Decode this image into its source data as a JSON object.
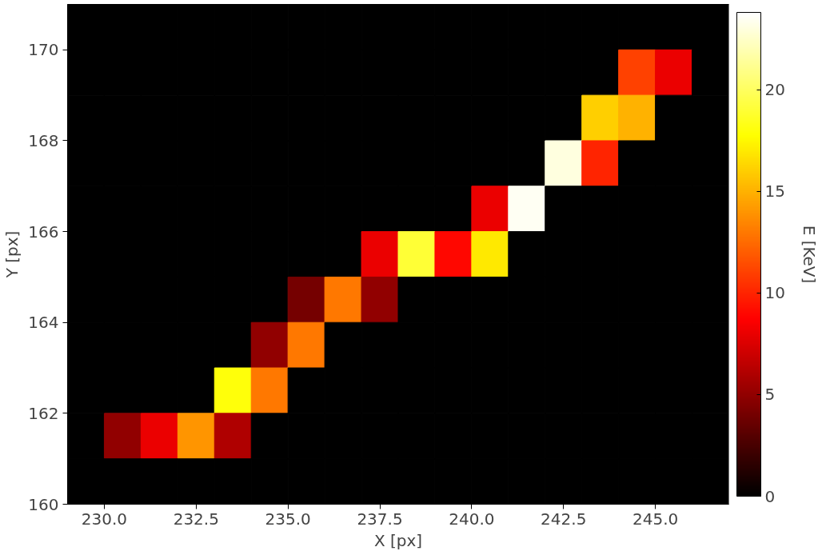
{
  "chart_data": {
    "type": "heatmap",
    "xlabel": "X [px]",
    "ylabel": "Y [px]",
    "clabel": "E [KeV]",
    "x": [
      229.5,
      230.5,
      231.5,
      232.5,
      233.5,
      234.5,
      235.5,
      236.5,
      237.5,
      238.5,
      239.5,
      240.5,
      241.5,
      242.5,
      243.5,
      244.5,
      245.5,
      246.5
    ],
    "xlim": [
      229,
      247
    ],
    "ylim": [
      160,
      171
    ],
    "xticks": [
      {
        "value": 230,
        "label": "230.0"
      },
      {
        "value": 232.5,
        "label": "232.5"
      },
      {
        "value": 235,
        "label": "235.0"
      },
      {
        "value": 237.5,
        "label": "237.5"
      },
      {
        "value": 240,
        "label": "240.0"
      },
      {
        "value": 242.5,
        "label": "242.5"
      },
      {
        "value": 245,
        "label": "245.0"
      }
    ],
    "yticks": [
      160,
      162,
      164,
      166,
      168,
      170
    ],
    "clim": [
      0,
      23.8
    ],
    "cticks": [
      0,
      5,
      10,
      15,
      20
    ],
    "cells": [
      [
        0,
        0,
        0,
        0,
        0,
        0,
        0,
        0,
        0,
        0,
        0,
        0,
        0,
        0,
        0,
        0,
        0,
        0
      ],
      [
        0,
        0,
        0,
        0,
        0,
        0,
        0,
        0,
        0,
        0,
        0,
        0,
        0,
        0,
        0,
        11,
        8,
        0
      ],
      [
        0,
        0,
        0,
        0,
        0,
        0,
        0,
        0,
        0,
        0,
        0,
        0,
        0,
        0,
        16,
        15,
        0,
        0
      ],
      [
        0,
        0,
        0,
        0,
        0,
        0,
        0,
        0,
        0,
        0,
        0,
        0,
        0,
        23,
        10,
        0,
        0,
        0
      ],
      [
        0,
        0,
        0,
        0,
        0,
        0,
        0,
        0,
        0,
        0,
        0,
        8,
        23.5,
        0,
        0,
        0,
        0,
        0
      ],
      [
        0,
        0,
        0,
        0,
        0,
        0,
        0,
        0,
        8,
        19,
        9,
        17,
        0,
        0,
        0,
        0,
        0,
        0
      ],
      [
        0,
        0,
        0,
        0,
        0,
        0,
        4,
        13,
        5,
        0,
        0,
        0,
        0,
        0,
        0,
        0,
        0,
        0
      ],
      [
        0,
        0,
        0,
        0,
        0,
        5,
        13,
        0,
        0,
        0,
        0,
        0,
        0,
        0,
        0,
        0,
        0,
        0
      ],
      [
        0,
        0,
        0,
        0,
        18,
        13,
        0,
        0,
        0,
        0,
        0,
        0,
        0,
        0,
        0,
        0,
        0,
        0
      ],
      [
        0,
        5,
        8,
        14,
        6,
        0,
        0,
        0,
        0,
        0,
        0,
        0,
        0,
        0,
        0,
        0,
        0,
        0
      ],
      [
        0,
        0,
        0,
        0,
        0,
        0,
        0,
        0,
        0,
        0,
        0,
        0,
        0,
        0,
        0,
        0,
        0,
        0
      ]
    ],
    "grid": false
  }
}
